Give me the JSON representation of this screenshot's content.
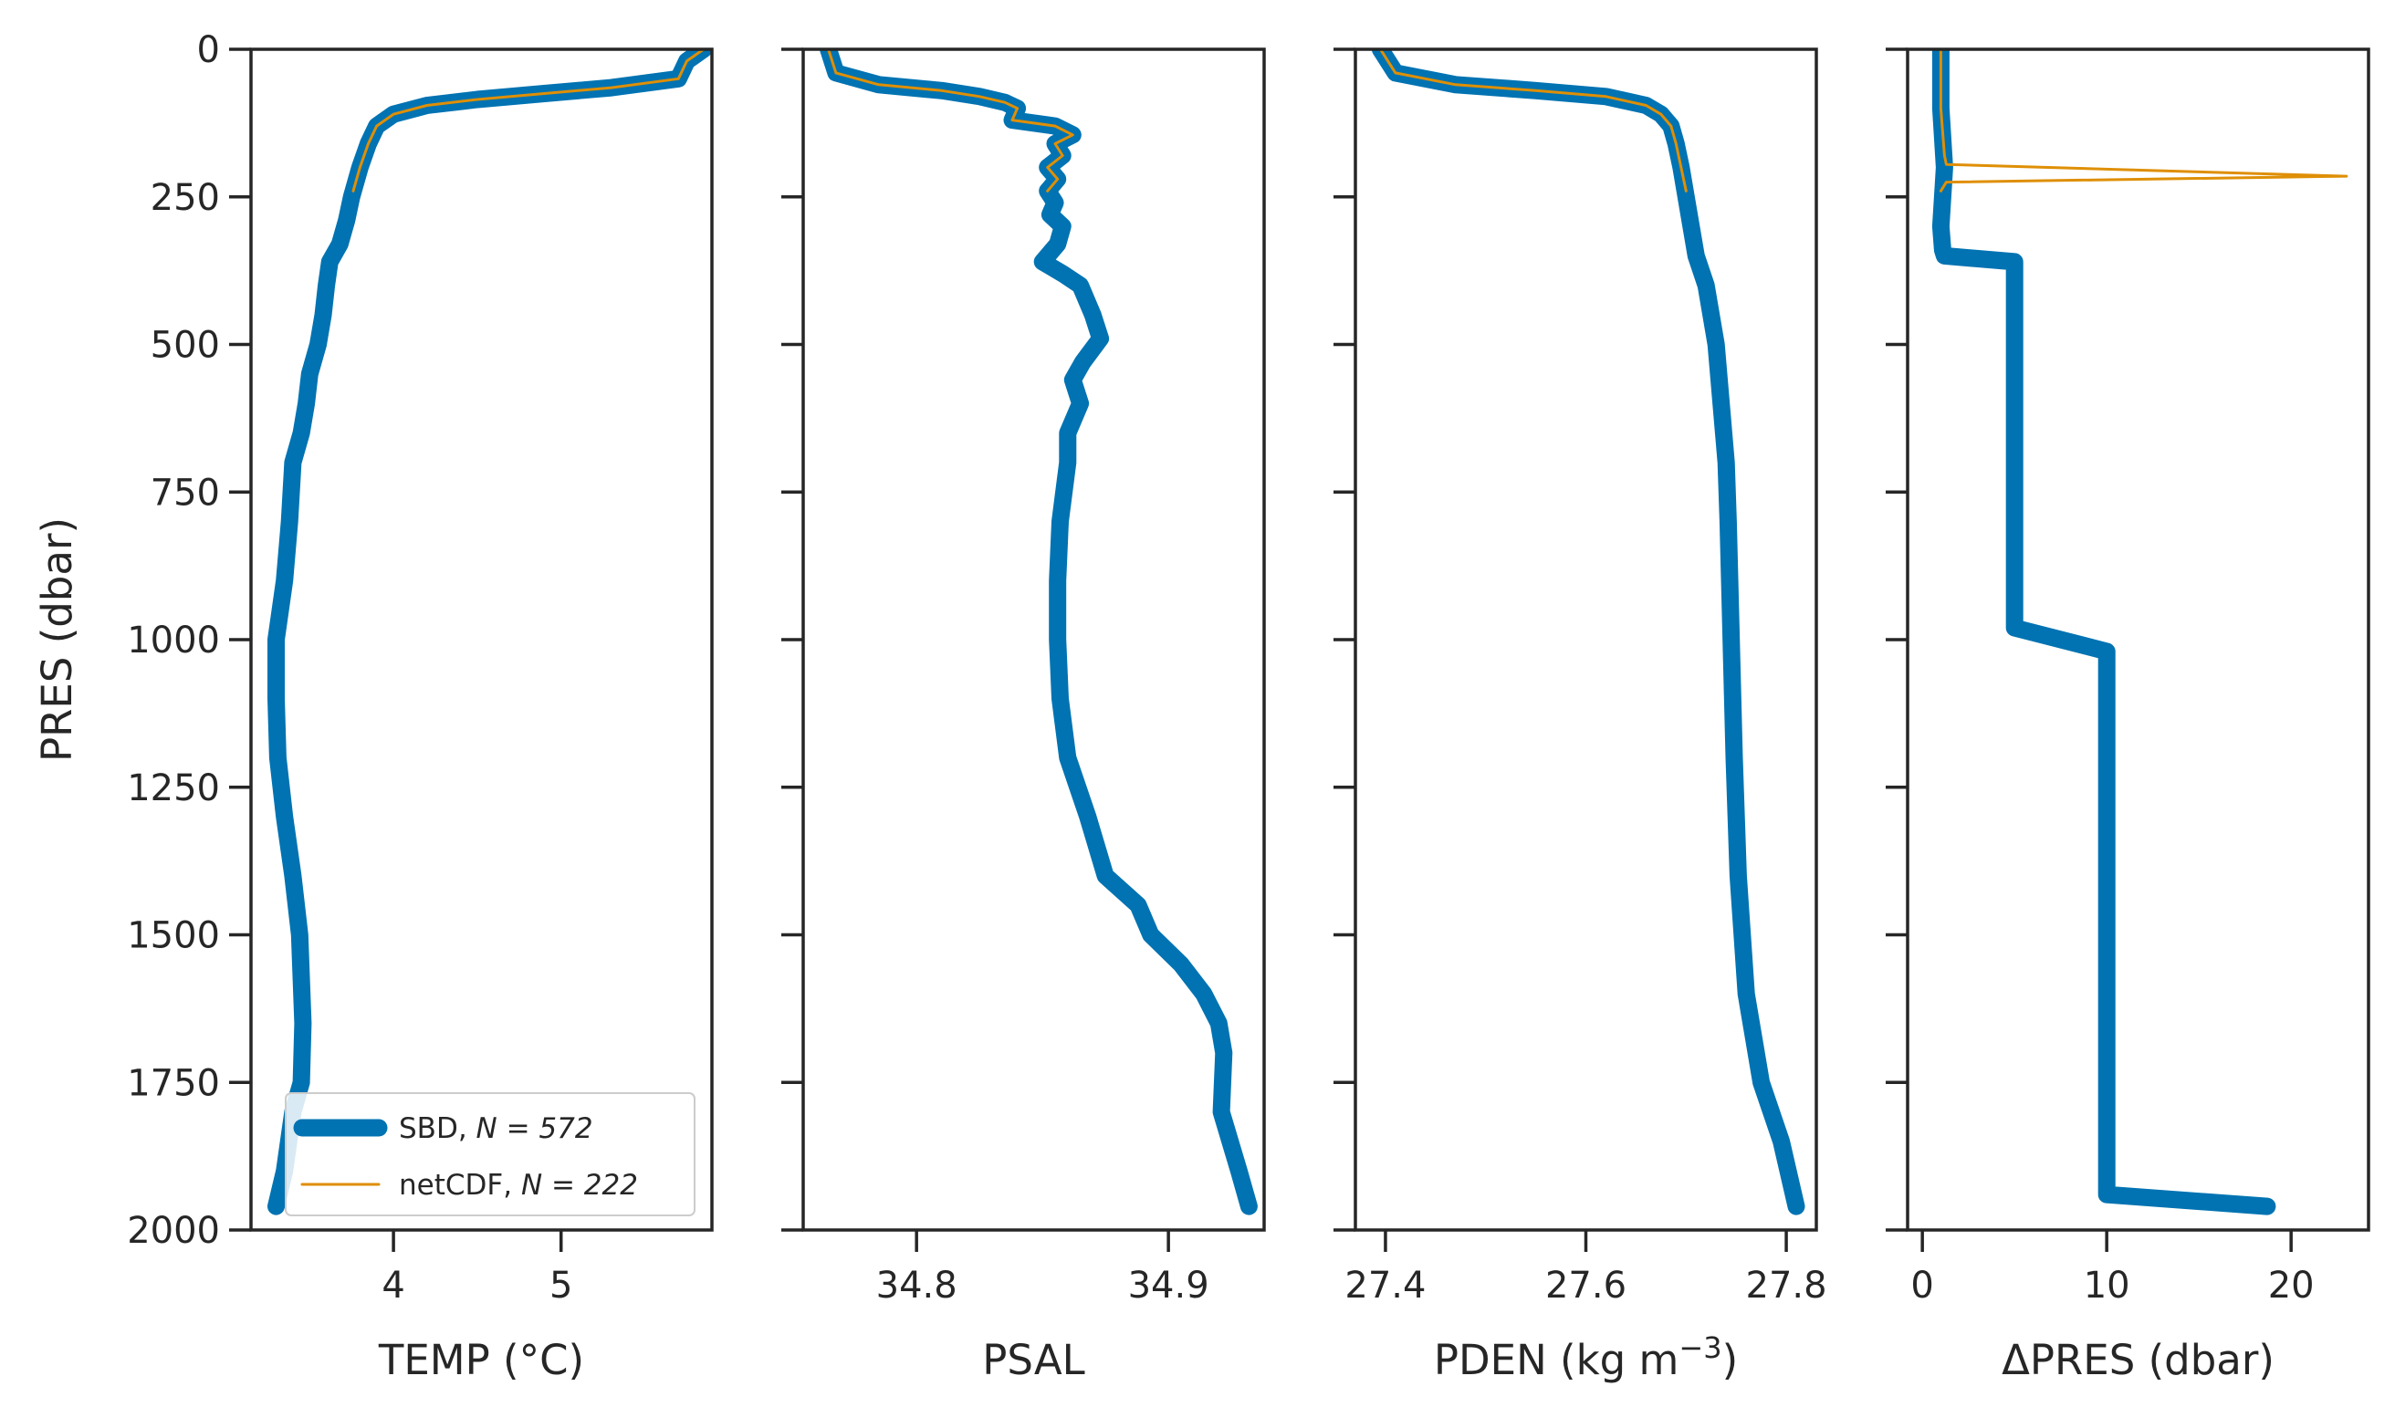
{
  "chart_data": {
    "type": "line",
    "shared_y": {
      "label": "PRES (dbar)",
      "ylim": [
        2000,
        0
      ],
      "inverted": true,
      "ticks": [
        0,
        250,
        500,
        750,
        1000,
        1250,
        1500,
        1750,
        2000
      ]
    },
    "colors": {
      "SBD": "#0173b2",
      "netCDF": "#de8f05"
    },
    "legend": {
      "location": "lower-right",
      "entries": [
        {
          "series": "SBD",
          "label": "SBD, ",
          "n_label": "N = 572"
        },
        {
          "series": "netCDF",
          "label": "netCDF, ",
          "n_label": "N = 222"
        }
      ]
    },
    "panels": [
      {
        "name": "temp",
        "xlabel": "TEMP (°C)",
        "xlim": [
          3.15,
          5.9
        ],
        "xticks": [
          4,
          5
        ],
        "series": [
          {
            "name": "SBD",
            "points": [
              [
                5.85,
                0
              ],
              [
                5.75,
                20
              ],
              [
                5.7,
                50
              ],
              [
                5.3,
                65
              ],
              [
                4.9,
                75
              ],
              [
                4.5,
                85
              ],
              [
                4.2,
                95
              ],
              [
                4.0,
                110
              ],
              [
                3.9,
                130
              ],
              [
                3.85,
                160
              ],
              [
                3.8,
                200
              ],
              [
                3.75,
                250
              ],
              [
                3.72,
                290
              ],
              [
                3.68,
                330
              ],
              [
                3.62,
                360
              ],
              [
                3.6,
                400
              ],
              [
                3.58,
                450
              ],
              [
                3.55,
                500
              ],
              [
                3.5,
                550
              ],
              [
                3.48,
                600
              ],
              [
                3.45,
                650
              ],
              [
                3.4,
                700
              ],
              [
                3.38,
                800
              ],
              [
                3.35,
                900
              ],
              [
                3.3,
                1000
              ],
              [
                3.3,
                1100
              ],
              [
                3.31,
                1200
              ],
              [
                3.35,
                1300
              ],
              [
                3.4,
                1400
              ],
              [
                3.44,
                1500
              ],
              [
                3.46,
                1650
              ],
              [
                3.45,
                1750
              ],
              [
                3.4,
                1800
              ],
              [
                3.35,
                1900
              ],
              [
                3.3,
                1960
              ]
            ]
          },
          {
            "name": "netCDF",
            "points": [
              [
                5.85,
                0
              ],
              [
                5.75,
                20
              ],
              [
                5.7,
                50
              ],
              [
                5.3,
                65
              ],
              [
                4.9,
                75
              ],
              [
                4.5,
                85
              ],
              [
                4.2,
                95
              ],
              [
                4.0,
                110
              ],
              [
                3.9,
                130
              ],
              [
                3.85,
                160
              ],
              [
                3.8,
                200
              ],
              [
                3.76,
                240
              ]
            ]
          }
        ]
      },
      {
        "name": "psal",
        "xlabel": "PSAL",
        "xlim": [
          34.755,
          34.938
        ],
        "xticks": [
          34.8,
          34.9
        ],
        "series": [
          {
            "name": "SBD",
            "points": [
              [
                34.765,
                0
              ],
              [
                34.768,
                40
              ],
              [
                34.785,
                60
              ],
              [
                34.81,
                70
              ],
              [
                34.825,
                80
              ],
              [
                34.835,
                90
              ],
              [
                34.84,
                100
              ],
              [
                34.838,
                120
              ],
              [
                34.855,
                130
              ],
              [
                34.862,
                145
              ],
              [
                34.855,
                160
              ],
              [
                34.858,
                180
              ],
              [
                34.852,
                200
              ],
              [
                34.856,
                220
              ],
              [
                34.852,
                240
              ],
              [
                34.855,
                260
              ],
              [
                34.853,
                280
              ],
              [
                34.858,
                300
              ],
              [
                34.856,
                330
              ],
              [
                34.85,
                360
              ],
              [
                34.858,
                380
              ],
              [
                34.865,
                400
              ],
              [
                34.87,
                450
              ],
              [
                34.873,
                490
              ],
              [
                34.866,
                530
              ],
              [
                34.862,
                560
              ],
              [
                34.865,
                600
              ],
              [
                34.86,
                650
              ],
              [
                34.86,
                700
              ],
              [
                34.857,
                800
              ],
              [
                34.856,
                900
              ],
              [
                34.856,
                1000
              ],
              [
                34.857,
                1100
              ],
              [
                34.86,
                1200
              ],
              [
                34.868,
                1300
              ],
              [
                34.875,
                1400
              ],
              [
                34.888,
                1450
              ],
              [
                34.893,
                1500
              ],
              [
                34.905,
                1550
              ],
              [
                34.914,
                1600
              ],
              [
                34.92,
                1650
              ],
              [
                34.922,
                1700
              ],
              [
                34.921,
                1800
              ],
              [
                34.928,
                1900
              ],
              [
                34.932,
                1960
              ]
            ]
          },
          {
            "name": "netCDF",
            "points": [
              [
                34.765,
                0
              ],
              [
                34.768,
                40
              ],
              [
                34.785,
                60
              ],
              [
                34.81,
                70
              ],
              [
                34.825,
                80
              ],
              [
                34.835,
                90
              ],
              [
                34.84,
                100
              ],
              [
                34.838,
                120
              ],
              [
                34.855,
                130
              ],
              [
                34.862,
                145
              ],
              [
                34.855,
                160
              ],
              [
                34.858,
                180
              ],
              [
                34.852,
                200
              ],
              [
                34.856,
                220
              ],
              [
                34.852,
                240
              ]
            ]
          }
        ]
      },
      {
        "name": "pden",
        "xlabel": "PDEN (kg m",
        "xlabel_sup": "−3",
        "xlabel_end": ")",
        "xlim": [
          27.37,
          27.83
        ],
        "xticks": [
          27.4,
          27.6,
          27.8
        ],
        "series": [
          {
            "name": "SBD",
            "points": [
              [
                27.395,
                0
              ],
              [
                27.41,
                40
              ],
              [
                27.47,
                60
              ],
              [
                27.55,
                70
              ],
              [
                27.62,
                80
              ],
              [
                27.66,
                95
              ],
              [
                27.675,
                110
              ],
              [
                27.685,
                130
              ],
              [
                27.69,
                160
              ],
              [
                27.695,
                200
              ],
              [
                27.7,
                250
              ],
              [
                27.705,
                300
              ],
              [
                27.71,
                350
              ],
              [
                27.72,
                400
              ],
              [
                27.73,
                500
              ],
              [
                27.735,
                600
              ],
              [
                27.74,
                700
              ],
              [
                27.742,
                800
              ],
              [
                27.745,
                1000
              ],
              [
                27.748,
                1200
              ],
              [
                27.752,
                1400
              ],
              [
                27.76,
                1600
              ],
              [
                27.775,
                1750
              ],
              [
                27.795,
                1850
              ],
              [
                27.81,
                1960
              ]
            ]
          },
          {
            "name": "netCDF",
            "points": [
              [
                27.395,
                0
              ],
              [
                27.41,
                40
              ],
              [
                27.47,
                60
              ],
              [
                27.55,
                70
              ],
              [
                27.62,
                80
              ],
              [
                27.66,
                95
              ],
              [
                27.675,
                110
              ],
              [
                27.685,
                130
              ],
              [
                27.69,
                160
              ],
              [
                27.695,
                200
              ],
              [
                27.7,
                240
              ]
            ]
          }
        ]
      },
      {
        "name": "dpres",
        "xlabel": "ΔPRES (dbar)",
        "xlim": [
          -0.8,
          24.2
        ],
        "xticks": [
          0,
          10,
          20
        ],
        "series": [
          {
            "name": "SBD",
            "points": [
              [
                1,
                0
              ],
              [
                1,
                100
              ],
              [
                1.2,
                200
              ],
              [
                1,
                300
              ],
              [
                1.1,
                340
              ],
              [
                1.2,
                350
              ],
              [
                5,
                360
              ],
              [
                5,
                500
              ],
              [
                5,
                700
              ],
              [
                5,
                900
              ],
              [
                5,
                980
              ],
              [
                10,
                1020
              ],
              [
                10,
                1200
              ],
              [
                10,
                1400
              ],
              [
                10,
                1600
              ],
              [
                10,
                1800
              ],
              [
                10,
                1940
              ],
              [
                18.7,
                1960
              ]
            ]
          },
          {
            "name": "netCDF",
            "points": [
              [
                1,
                0
              ],
              [
                1,
                100
              ],
              [
                1.2,
                180
              ],
              [
                1.3,
                195
              ],
              [
                23,
                215
              ],
              [
                1.3,
                225
              ],
              [
                1,
                240
              ]
            ]
          }
        ]
      }
    ]
  }
}
